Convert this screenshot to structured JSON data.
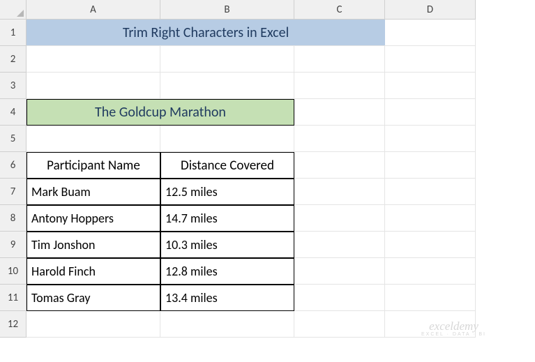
{
  "col_headers": [
    "A",
    "B",
    "C",
    "D"
  ],
  "row_headers": [
    "1",
    "2",
    "3",
    "4",
    "5",
    "6",
    "7",
    "8",
    "9",
    "10",
    "11",
    "12"
  ],
  "title": {
    "text": "Trim Right Characters in Excel",
    "background_color": "#b7cce4",
    "text_color": "#1f3a5f"
  },
  "subtitle": {
    "text": "The Goldcup Marathon",
    "background_color": "#c5e0b4",
    "text_color": "#1f3a5f"
  },
  "table": {
    "header_background_color": "#f8cbad",
    "columns": [
      "Participant Name",
      "Distance Covered"
    ],
    "rows": [
      [
        "Mark Buam",
        "12.5 miles"
      ],
      [
        "Antony Hoppers",
        "14.7 miles"
      ],
      [
        "Tim Jonshon",
        "10.3 miles"
      ],
      [
        "Harold Finch",
        "12.8 miles"
      ],
      [
        "Tomas Gray",
        "13.4 miles"
      ]
    ]
  },
  "watermark": {
    "main": "exceldemy",
    "sub": "EXCEL · DATA · BI"
  },
  "colors": {
    "gridline": "#e4e4e4",
    "header_bg": "#f0f0f0",
    "header_border": "#cfcfcf"
  }
}
